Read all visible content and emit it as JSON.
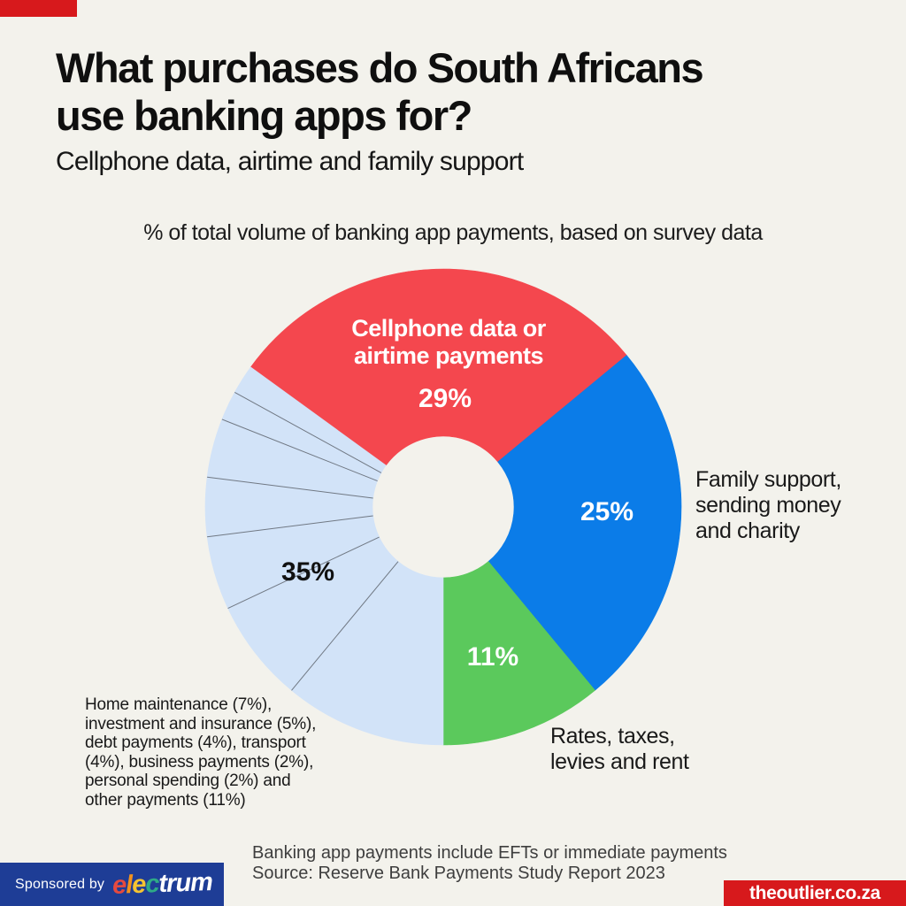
{
  "page": {
    "background": "#F3F2EC",
    "accent_red": "#D7191C",
    "navy": "#1E3D96"
  },
  "header": {
    "title": "What purchases do South Africans\nuse banking apps for?",
    "subtitle": "Cellphone data, airtime and family support"
  },
  "chart_note": "% of total volume of banking app payments, based on survey data",
  "chart_data": {
    "type": "pie",
    "style": "donut",
    "title": "% of total volume of banking app payments, based on survey data",
    "start_angle_deg": -54,
    "direction": "clockwise",
    "outer_radius": 269,
    "inner_radius": 80,
    "divider_color": "#707883",
    "slices": [
      {
        "label": "Cellphone data or airtime payments",
        "value": 29,
        "color": "#F4474E",
        "group": "main"
      },
      {
        "label": "Family support, sending money and charity",
        "value": 25,
        "color": "#0B7CE8",
        "group": "main"
      },
      {
        "label": "Rates, taxes, levies and rent",
        "value": 11,
        "color": "#5BC95C",
        "group": "main"
      },
      {
        "label": "Other payments",
        "value": 11,
        "color": "#D2E3F8",
        "group": "other"
      },
      {
        "label": "Home maintenance",
        "value": 7,
        "color": "#D2E3F8",
        "group": "other"
      },
      {
        "label": "Investment and insurance",
        "value": 5,
        "color": "#D2E3F8",
        "group": "other"
      },
      {
        "label": "Debt payments",
        "value": 4,
        "color": "#D2E3F8",
        "group": "other"
      },
      {
        "label": "Transport",
        "value": 4,
        "color": "#D2E3F8",
        "group": "other"
      },
      {
        "label": "Business payments",
        "value": 2,
        "color": "#D2E3F8",
        "group": "other"
      },
      {
        "label": "Personal spending",
        "value": 2,
        "color": "#D2E3F8",
        "group": "other"
      }
    ],
    "other_group_total_pct": 35
  },
  "labels": {
    "cellphone": {
      "text": "Cellphone data or\nairtime payments",
      "pct": "29%"
    },
    "family": {
      "text": "Family support,\nsending money\nand charity",
      "pct": "25%"
    },
    "rates": {
      "text": "Rates, taxes,\nlevies and rent",
      "pct": "11%"
    },
    "other": {
      "pct": "35%",
      "breakdown": "Home maintenance (7%),\ninvestment and insurance (5%),\ndebt payments (4%), transport\n(4%), business payments (2%),\npersonal spending (2%) and\nother payments (11%)"
    }
  },
  "footnote": {
    "text": "Banking app payments include EFTs or immediate payments\nSource: Reserve Bank Payments Study Report 2023"
  },
  "footer": {
    "sponsored_by": "Sponsored by",
    "sponsor_letters": [
      {
        "char": "e",
        "color": "#E64A3F"
      },
      {
        "char": "l",
        "color": "#F2921D"
      },
      {
        "char": "e",
        "color": "#F6C431"
      },
      {
        "char": "c",
        "color": "#2EAA87"
      },
      {
        "char": "trum",
        "color": "#FFFFFF"
      }
    ],
    "site": "theoutlier.co.za"
  }
}
